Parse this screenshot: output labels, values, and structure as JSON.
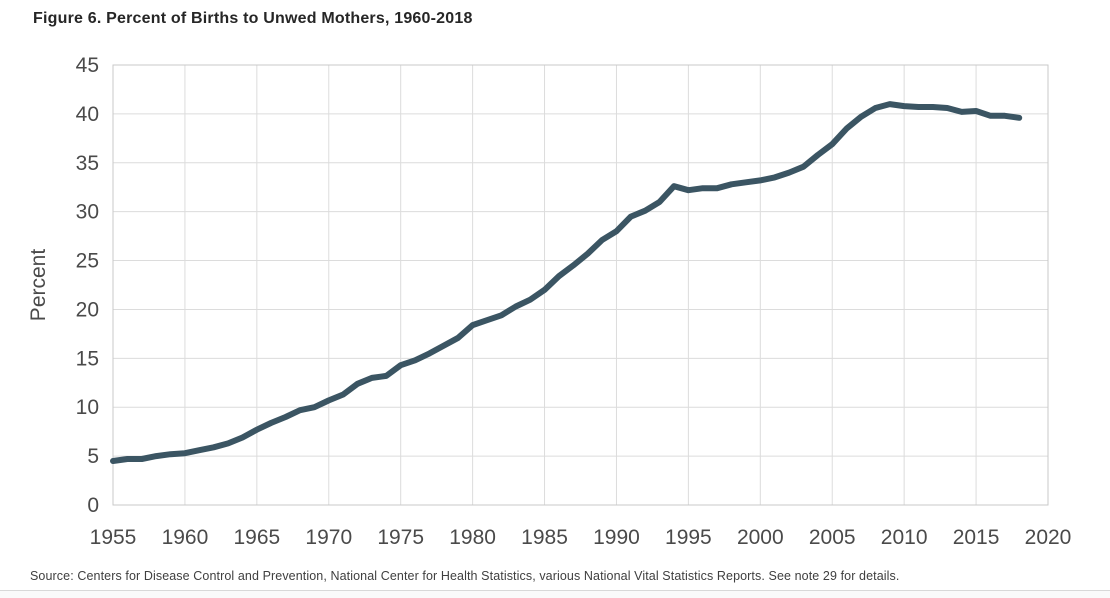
{
  "figure": {
    "title": "Figure 6. Percent of Births to Unwed Mothers, 1960-2018",
    "source": "Source: Centers for Disease Control and Prevention, National Center for Health Statistics, various National Vital Statistics Reports. See note 29 for details."
  },
  "chart_data": {
    "type": "line",
    "title": "Figure 6. Percent of Births to Unwed Mothers, 1960-2018",
    "xlabel": "",
    "ylabel": "Percent",
    "xlim": [
      1955,
      2020
    ],
    "ylim": [
      0,
      45
    ],
    "x_ticks": [
      1955,
      1960,
      1965,
      1970,
      1975,
      1980,
      1985,
      1990,
      1995,
      2000,
      2005,
      2010,
      2015,
      2020
    ],
    "y_ticks": [
      0,
      5,
      10,
      15,
      20,
      25,
      30,
      35,
      40,
      45
    ],
    "grid": true,
    "legend": "none",
    "line_color": "#3b5563",
    "grid_color": "#dcdcdc",
    "border_color": "#c9c9c9",
    "series": [
      {
        "name": "Percent of births to unwed mothers",
        "x": [
          1955,
          1956,
          1957,
          1958,
          1959,
          1960,
          1961,
          1962,
          1963,
          1964,
          1965,
          1966,
          1967,
          1968,
          1969,
          1970,
          1971,
          1972,
          1973,
          1974,
          1975,
          1976,
          1977,
          1978,
          1979,
          1980,
          1981,
          1982,
          1983,
          1984,
          1985,
          1986,
          1987,
          1988,
          1989,
          1990,
          1991,
          1992,
          1993,
          1994,
          1995,
          1996,
          1997,
          1998,
          1999,
          2000,
          2001,
          2002,
          2003,
          2004,
          2005,
          2006,
          2007,
          2008,
          2009,
          2010,
          2011,
          2012,
          2013,
          2014,
          2015,
          2016,
          2017,
          2018
        ],
        "values": [
          4.5,
          4.7,
          4.7,
          5.0,
          5.2,
          5.3,
          5.6,
          5.9,
          6.3,
          6.9,
          7.7,
          8.4,
          9.0,
          9.7,
          10.0,
          10.7,
          11.3,
          12.4,
          13.0,
          13.2,
          14.3,
          14.8,
          15.5,
          16.3,
          17.1,
          18.4,
          18.9,
          19.4,
          20.3,
          21.0,
          22.0,
          23.4,
          24.5,
          25.7,
          27.1,
          28.0,
          29.5,
          30.1,
          31.0,
          32.6,
          32.2,
          32.4,
          32.4,
          32.8,
          33.0,
          33.2,
          33.5,
          34.0,
          34.6,
          35.8,
          36.9,
          38.5,
          39.7,
          40.6,
          41.0,
          40.8,
          40.7,
          40.7,
          40.6,
          40.2,
          40.3,
          39.8,
          39.8,
          39.6
        ]
      }
    ]
  }
}
